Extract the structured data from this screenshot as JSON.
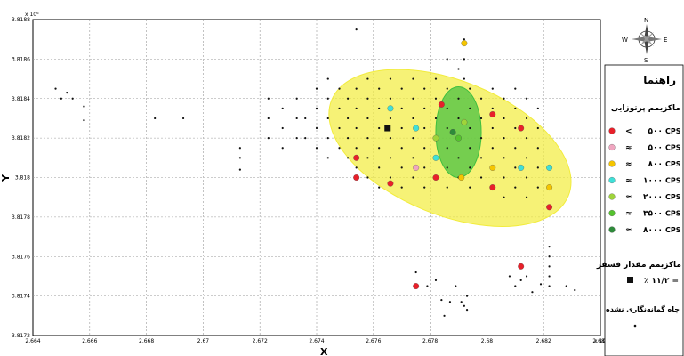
{
  "chart_data": {
    "type": "scatter",
    "xlabel": "X",
    "ylabel": "Y",
    "x_multiplier": "x 10⁶",
    "y_multiplier": "x 10⁶",
    "xlim": [
      2.664,
      2.684
    ],
    "ylim": [
      3.8172,
      3.8188
    ],
    "grid": true,
    "x_ticks": [
      "2.664",
      "2.666",
      "2.668",
      "2.67",
      "2.672",
      "2.674",
      "2.676",
      "2.678",
      "2.68",
      "2.682",
      "2.684"
    ],
    "y_ticks": [
      "3.8172",
      "3.8174",
      "3.8176",
      "3.8178",
      "3.818",
      "3.8182",
      "3.8184",
      "3.8186",
      "3.8188"
    ],
    "x_tick_values": [
      2.664,
      2.666,
      2.668,
      2.67,
      2.672,
      2.674,
      2.676,
      2.678,
      2.68,
      2.682,
      2.684
    ],
    "y_tick_values": [
      3.8172,
      3.8174,
      3.8176,
      3.8178,
      3.818,
      3.8182,
      3.8184,
      3.8186,
      3.8188
    ],
    "ellipses": [
      {
        "cx": 2.6787,
        "cy": 3.81815,
        "rx": 0.0045,
        "ry": 0.00034,
        "rotation_deg": 22,
        "color": "#f2ec3c"
      },
      {
        "cx": 2.679,
        "cy": 3.81823,
        "rx": 0.0008,
        "ry": 0.00023,
        "rotation_deg": 0,
        "color": "#3fbf3f"
      }
    ],
    "undrilled_wells": [
      [
        2.6648,
        3.81845
      ],
      [
        2.665,
        3.8184
      ],
      [
        2.6652,
        3.81843
      ],
      [
        2.6654,
        3.8184
      ],
      [
        2.6658,
        3.81836
      ],
      [
        2.6658,
        3.81829
      ],
      [
        2.6683,
        3.8183
      ],
      [
        2.6693,
        3.8183
      ],
      [
        2.6713,
        3.81815
      ],
      [
        2.6713,
        3.8181
      ],
      [
        2.6713,
        3.81804
      ],
      [
        2.6723,
        3.8184
      ],
      [
        2.6723,
        3.8183
      ],
      [
        2.6723,
        3.8182
      ],
      [
        2.6728,
        3.81835
      ],
      [
        2.6728,
        3.81825
      ],
      [
        2.6728,
        3.81815
      ],
      [
        2.6733,
        3.8184
      ],
      [
        2.6733,
        3.8183
      ],
      [
        2.6733,
        3.8182
      ],
      [
        2.6736,
        3.8183
      ],
      [
        2.6736,
        3.8182
      ],
      [
        2.674,
        3.81845
      ],
      [
        2.674,
        3.81835
      ],
      [
        2.674,
        3.81825
      ],
      [
        2.674,
        3.81815
      ],
      [
        2.6744,
        3.8185
      ],
      [
        2.6744,
        3.8184
      ],
      [
        2.6744,
        3.8183
      ],
      [
        2.6744,
        3.8182
      ],
      [
        2.6744,
        3.8181
      ],
      [
        2.6748,
        3.81845
      ],
      [
        2.6748,
        3.81835
      ],
      [
        2.6748,
        3.81825
      ],
      [
        2.6748,
        3.81815
      ],
      [
        2.6751,
        3.8184
      ],
      [
        2.6751,
        3.8183
      ],
      [
        2.6751,
        3.8182
      ],
      [
        2.6751,
        3.8181
      ],
      [
        2.6754,
        3.81875
      ],
      [
        2.6754,
        3.81845
      ],
      [
        2.6754,
        3.81835
      ],
      [
        2.6754,
        3.81825
      ],
      [
        2.6754,
        3.81815
      ],
      [
        2.6754,
        3.81805
      ],
      [
        2.6758,
        3.8185
      ],
      [
        2.6758,
        3.8184
      ],
      [
        2.6758,
        3.8183
      ],
      [
        2.6758,
        3.8182
      ],
      [
        2.6758,
        3.8181
      ],
      [
        2.6758,
        3.818
      ],
      [
        2.6762,
        3.81845
      ],
      [
        2.6762,
        3.81835
      ],
      [
        2.6762,
        3.81825
      ],
      [
        2.6762,
        3.81815
      ],
      [
        2.6762,
        3.81805
      ],
      [
        2.6762,
        3.81795
      ],
      [
        2.6766,
        3.8185
      ],
      [
        2.6766,
        3.8184
      ],
      [
        2.6766,
        3.8183
      ],
      [
        2.6766,
        3.8182
      ],
      [
        2.6766,
        3.8181
      ],
      [
        2.6766,
        3.818
      ],
      [
        2.677,
        3.81845
      ],
      [
        2.677,
        3.81835
      ],
      [
        2.677,
        3.81825
      ],
      [
        2.677,
        3.81815
      ],
      [
        2.677,
        3.81805
      ],
      [
        2.677,
        3.81795
      ],
      [
        2.6774,
        3.8185
      ],
      [
        2.6774,
        3.8184
      ],
      [
        2.6774,
        3.8183
      ],
      [
        2.6774,
        3.8182
      ],
      [
        2.6774,
        3.8181
      ],
      [
        2.6774,
        3.818
      ],
      [
        2.6778,
        3.81845
      ],
      [
        2.6778,
        3.81835
      ],
      [
        2.6778,
        3.81825
      ],
      [
        2.6778,
        3.81815
      ],
      [
        2.6778,
        3.81805
      ],
      [
        2.6778,
        3.81795
      ],
      [
        2.6782,
        3.8185
      ],
      [
        2.6782,
        3.8184
      ],
      [
        2.6782,
        3.8183
      ],
      [
        2.6782,
        3.8182
      ],
      [
        2.6782,
        3.8181
      ],
      [
        2.6782,
        3.818
      ],
      [
        2.6786,
        3.8186
      ],
      [
        2.6786,
        3.81845
      ],
      [
        2.6786,
        3.81835
      ],
      [
        2.6786,
        3.81825
      ],
      [
        2.6786,
        3.81815
      ],
      [
        2.6786,
        3.81805
      ],
      [
        2.6786,
        3.81795
      ],
      [
        2.679,
        3.81855
      ],
      [
        2.679,
        3.8184
      ],
      [
        2.679,
        3.8183
      ],
      [
        2.679,
        3.8182
      ],
      [
        2.679,
        3.8181
      ],
      [
        2.679,
        3.818
      ],
      [
        2.6792,
        3.8187
      ],
      [
        2.6792,
        3.8186
      ],
      [
        2.6792,
        3.8185
      ],
      [
        2.6794,
        3.81845
      ],
      [
        2.6794,
        3.81835
      ],
      [
        2.6794,
        3.81825
      ],
      [
        2.6794,
        3.81815
      ],
      [
        2.6794,
        3.81805
      ],
      [
        2.6794,
        3.81795
      ],
      [
        2.6798,
        3.8184
      ],
      [
        2.6798,
        3.8183
      ],
      [
        2.6798,
        3.8182
      ],
      [
        2.6798,
        3.8181
      ],
      [
        2.6798,
        3.818
      ],
      [
        2.6802,
        3.81845
      ],
      [
        2.6802,
        3.81835
      ],
      [
        2.6802,
        3.81825
      ],
      [
        2.6802,
        3.81815
      ],
      [
        2.6802,
        3.81805
      ],
      [
        2.6802,
        3.81795
      ],
      [
        2.6806,
        3.8184
      ],
      [
        2.6806,
        3.8183
      ],
      [
        2.6806,
        3.8182
      ],
      [
        2.6806,
        3.8181
      ],
      [
        2.6806,
        3.818
      ],
      [
        2.6806,
        3.8179
      ],
      [
        2.681,
        3.81845
      ],
      [
        2.681,
        3.81835
      ],
      [
        2.681,
        3.81825
      ],
      [
        2.681,
        3.81815
      ],
      [
        2.681,
        3.81805
      ],
      [
        2.681,
        3.81795
      ],
      [
        2.6814,
        3.8184
      ],
      [
        2.6814,
        3.8183
      ],
      [
        2.6814,
        3.8182
      ],
      [
        2.6814,
        3.8181
      ],
      [
        2.6814,
        3.818
      ],
      [
        2.6814,
        3.8179
      ],
      [
        2.6818,
        3.81835
      ],
      [
        2.6818,
        3.81825
      ],
      [
        2.6818,
        3.81815
      ],
      [
        2.6818,
        3.81805
      ],
      [
        2.6818,
        3.81795
      ],
      [
        2.6822,
        3.81765
      ],
      [
        2.6822,
        3.8176
      ],
      [
        2.6822,
        3.81755
      ],
      [
        2.6822,
        3.8175
      ],
      [
        2.6822,
        3.81745
      ],
      [
        2.6775,
        3.81752
      ],
      [
        2.6779,
        3.81745
      ],
      [
        2.6782,
        3.81748
      ],
      [
        2.6784,
        3.81738
      ],
      [
        2.6785,
        3.8173
      ],
      [
        2.6787,
        3.81737
      ],
      [
        2.6789,
        3.81745
      ],
      [
        2.6792,
        3.81735
      ],
      [
        2.6793,
        3.8174
      ],
      [
        2.6793,
        3.81733
      ],
      [
        2.6791,
        3.81737
      ],
      [
        2.6808,
        3.8175
      ],
      [
        2.681,
        3.81745
      ],
      [
        2.6812,
        3.81748
      ],
      [
        2.6814,
        3.8175
      ],
      [
        2.6816,
        3.81742
      ],
      [
        2.6819,
        3.81746
      ],
      [
        2.6828,
        3.81745
      ],
      [
        2.6831,
        3.81743
      ]
    ],
    "max_radioactivity_points": [
      {
        "x": 2.6754,
        "y": 3.8181,
        "category": 0
      },
      {
        "x": 2.6754,
        "y": 3.818,
        "category": 0
      },
      {
        "x": 2.6766,
        "y": 3.81797,
        "category": 0
      },
      {
        "x": 2.6784,
        "y": 3.81837,
        "category": 0
      },
      {
        "x": 2.6782,
        "y": 3.818,
        "category": 0
      },
      {
        "x": 2.6802,
        "y": 3.81832,
        "category": 0
      },
      {
        "x": 2.6802,
        "y": 3.81795,
        "category": 0
      },
      {
        "x": 2.6812,
        "y": 3.81825,
        "category": 0
      },
      {
        "x": 2.6822,
        "y": 3.81785,
        "category": 0
      },
      {
        "x": 2.6775,
        "y": 3.81745,
        "category": 0
      },
      {
        "x": 2.6812,
        "y": 3.81755,
        "category": 0
      },
      {
        "x": 2.6775,
        "y": 3.81805,
        "category": 1
      },
      {
        "x": 2.6792,
        "y": 3.81868,
        "category": 2
      },
      {
        "x": 2.6791,
        "y": 3.818,
        "category": 2
      },
      {
        "x": 2.6802,
        "y": 3.81805,
        "category": 2
      },
      {
        "x": 2.6822,
        "y": 3.81795,
        "category": 2
      },
      {
        "x": 2.6766,
        "y": 3.81835,
        "category": 3
      },
      {
        "x": 2.6775,
        "y": 3.81825,
        "category": 3
      },
      {
        "x": 2.6782,
        "y": 3.8181,
        "category": 3
      },
      {
        "x": 2.6812,
        "y": 3.81805,
        "category": 3
      },
      {
        "x": 2.6822,
        "y": 3.81805,
        "category": 3
      },
      {
        "x": 2.6782,
        "y": 3.8182,
        "category": 4
      },
      {
        "x": 2.6792,
        "y": 3.81828,
        "category": 4
      },
      {
        "x": 2.679,
        "y": 3.8182,
        "category": 5
      },
      {
        "x": 2.6788,
        "y": 3.81823,
        "category": 6
      }
    ],
    "max_phosphate_points": [
      {
        "x": 2.6765,
        "y": 3.81825
      }
    ]
  },
  "legend": {
    "title": "راهنما",
    "radioactivity_title": "ماکزیمم پرتوزایی",
    "items": [
      {
        "symbol": "<",
        "value": "۵۰۰",
        "unit": "CPS",
        "color": "#e8202a"
      },
      {
        "symbol": "≈",
        "value": "۵۰۰",
        "unit": "CPS",
        "color": "#f0a6c0"
      },
      {
        "symbol": "≈",
        "value": "۸۰۰",
        "unit": "CPS",
        "color": "#f5c500"
      },
      {
        "symbol": "≈",
        "value": "۱۰۰۰",
        "unit": "CPS",
        "color": "#3fe0d8"
      },
      {
        "symbol": "≈",
        "value": "۲۰۰۰",
        "unit": "CPS",
        "color": "#9fd43a"
      },
      {
        "symbol": "≈",
        "value": "۳۵۰۰",
        "unit": "CPS",
        "color": "#55c22e"
      },
      {
        "symbol": "≈",
        "value": "۸۰۰۰",
        "unit": "CPS",
        "color": "#2e8b3a"
      }
    ],
    "phosphate_title": "ماکزیمم مقدار فسفر",
    "phosphate_value": "٪ ۱۱/۲ =",
    "undrilled_title": "چاه گمانه‌نگاری نشده"
  },
  "compass": {
    "n": "N",
    "s": "S",
    "e": "E",
    "w": "W"
  }
}
